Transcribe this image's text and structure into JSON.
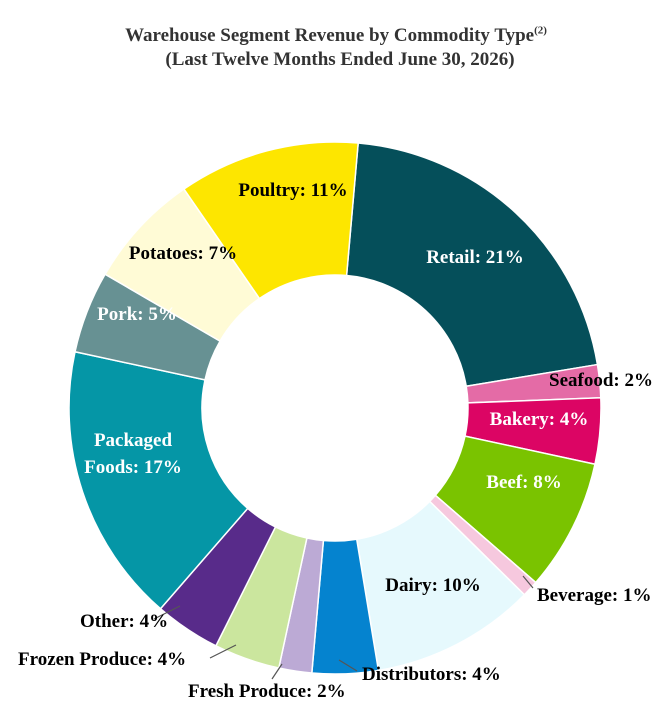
{
  "chart_data": {
    "type": "pie",
    "donut": true,
    "title": "Warehouse Segment Revenue by Commodity Type",
    "title_footnote": "(2)",
    "subtitle": "(Last Twelve Months Ended June 30, 2026)",
    "value_unit": "%",
    "start_angle_deg": 5,
    "slices": [
      {
        "label": "Retail",
        "value": 21,
        "color": "#054f5a",
        "label_color": "#ffffff"
      },
      {
        "label": "Seafood",
        "value": 2,
        "color": "#e46ba6",
        "label_color": "#000000"
      },
      {
        "label": "Bakery",
        "value": 4,
        "color": "#dc0564",
        "label_color": "#ffffff"
      },
      {
        "label": "Beef",
        "value": 8,
        "color": "#7ac300",
        "label_color": "#ffffff"
      },
      {
        "label": "Beverage",
        "value": 1,
        "color": "#f6c8de",
        "label_color": "#000000"
      },
      {
        "label": "Dairy",
        "value": 10,
        "color": "#e6f9fd",
        "label_color": "#000000"
      },
      {
        "label": "Distributors",
        "value": 4,
        "color": "#0583cf",
        "label_color": "#000000"
      },
      {
        "label": "Fresh Produce",
        "value": 2,
        "color": "#bcaad5",
        "label_color": "#000000"
      },
      {
        "label": "Frozen Produce",
        "value": 4,
        "color": "#cbe69e",
        "label_color": "#000000"
      },
      {
        "label": "Other",
        "value": 4,
        "color": "#582b8a",
        "label_color": "#000000"
      },
      {
        "label": "Packaged Foods",
        "value": 17,
        "color": "#0596a6",
        "label_color": "#ffffff"
      },
      {
        "label": "Pork",
        "value": 5,
        "color": "#679193",
        "label_color": "#ffffff"
      },
      {
        "label": "Potatoes",
        "value": 7,
        "color": "#fffbd6",
        "label_color": "#000000"
      },
      {
        "label": "Poultry",
        "value": 11,
        "color": "#fde600",
        "label_color": "#000000"
      }
    ],
    "labels_text": [
      [
        "Retail: 21%"
      ],
      [
        "Seafood: 2%"
      ],
      [
        "Bakery: 4%"
      ],
      [
        "Beef: 8%"
      ],
      [
        "Beverage: 1%"
      ],
      [
        "Dairy: 10%"
      ],
      [
        "Distributors: 4%"
      ],
      [
        "Fresh Produce: 2%"
      ],
      [
        "Frozen Produce: 4%"
      ],
      [
        "Other: 4%"
      ],
      [
        "Packaged",
        "Foods: 17%"
      ],
      [
        "Pork: 5%"
      ],
      [
        "Potatoes: 7%"
      ],
      [
        "Poultry: 11%"
      ]
    ]
  }
}
